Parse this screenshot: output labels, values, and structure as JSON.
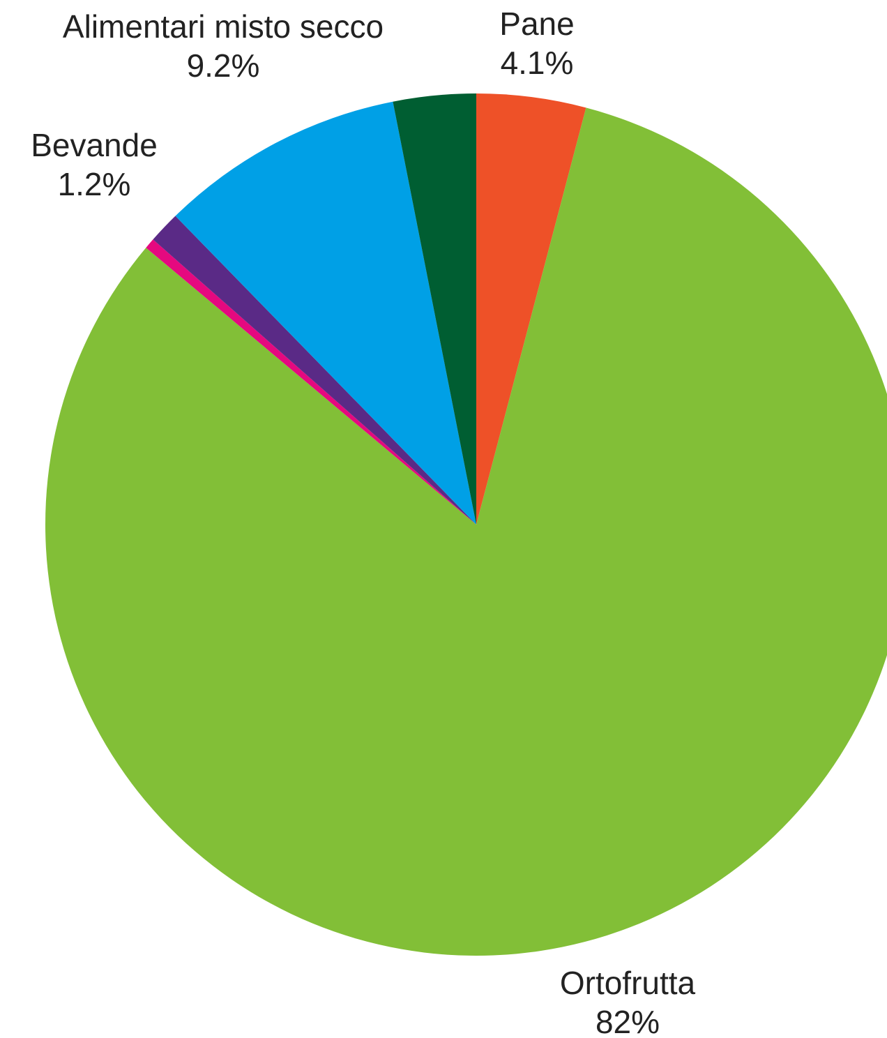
{
  "chart_data": {
    "type": "pie",
    "title": "",
    "start_angle_deg": 0,
    "direction": "clockwise",
    "slices": [
      {
        "label": "Pane",
        "value_text": "4.1%",
        "value": 4.1,
        "color": "#EE5128",
        "show_label": true
      },
      {
        "label": "Ortofrutta",
        "value_text": "82%",
        "value": 82.0,
        "color": "#82BF37",
        "show_label": true
      },
      {
        "label": "",
        "value_text": "",
        "value": 0.4,
        "color": "#E5097F",
        "show_label": false
      },
      {
        "label": "Bevande",
        "value_text": "1.2%",
        "value": 1.2,
        "color": "#5A2A86",
        "show_label": true
      },
      {
        "label": "Alimentari misto secco",
        "value_text": "9.2%",
        "value": 9.2,
        "color": "#00A0E6",
        "show_label": true
      },
      {
        "label": "",
        "value_text": "",
        "value": 3.1,
        "color": "#005E32",
        "show_label": false
      }
    ]
  }
}
